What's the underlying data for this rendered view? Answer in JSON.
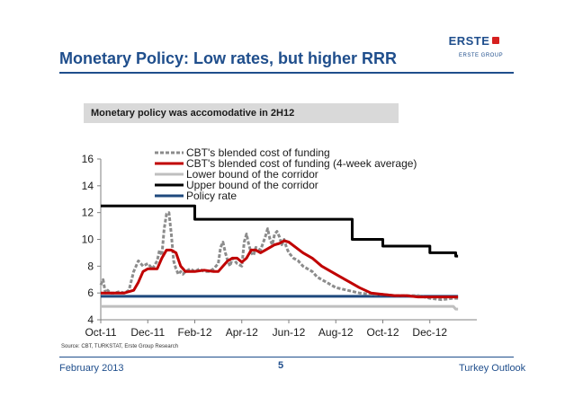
{
  "header": {
    "title": "Monetary Policy: Low rates, but higher RRR",
    "logo_text": "ERSTE",
    "logo_subtext": "ERSTE GROUP"
  },
  "banner": {
    "text": "Monetary policy was accomodative in 2H12"
  },
  "colors": {
    "brand_blue": "#1f4e8c",
    "logo_red": "#d6201f",
    "blended": "#8c8c8c",
    "blended_avg": "#c00000",
    "lower_bound": "#bfbfbf",
    "upper_bound": "#000000",
    "policy": "#1f497d"
  },
  "chart_data": {
    "type": "line",
    "title": "",
    "xlabel": "",
    "ylabel": "",
    "ylim": [
      4,
      16
    ],
    "yticks": [
      4,
      6,
      8,
      10,
      12,
      14,
      16
    ],
    "xlim": [
      0,
      16
    ],
    "xtick_labels": [
      "Oct-11",
      "Dec-11",
      "Feb-12",
      "Apr-12",
      "Jun-12",
      "Aug-12",
      "Oct-12",
      "Dec-12"
    ],
    "xtick_positions": [
      0,
      2,
      4,
      6,
      8,
      10,
      12,
      14
    ],
    "legend_position": "top-center",
    "series": [
      {
        "name": "CBT's blended cost of funding",
        "style": "gray-marker",
        "x": [
          0,
          0.1,
          0.2,
          0.3,
          0.4,
          0.5,
          0.6,
          0.8,
          1.0,
          1.2,
          1.4,
          1.6,
          1.8,
          2.0,
          2.2,
          2.4,
          2.5,
          2.6,
          2.7,
          2.8,
          2.9,
          3.0,
          3.1,
          3.2,
          3.3,
          3.4,
          3.5,
          3.6,
          3.8,
          4.0,
          4.2,
          4.4,
          4.6,
          4.8,
          5.0,
          5.1,
          5.2,
          5.3,
          5.4,
          5.5,
          5.6,
          5.8,
          6.0,
          6.1,
          6.2,
          6.3,
          6.4,
          6.5,
          6.6,
          6.8,
          7.0,
          7.1,
          7.2,
          7.3,
          7.4,
          7.5,
          7.6,
          7.7,
          7.8,
          7.9,
          8.0,
          8.2,
          8.4,
          8.6,
          8.8,
          9.0,
          9.2,
          9.4,
          9.6,
          9.8,
          10.0,
          10.5,
          11.0,
          11.5,
          12.0,
          12.5,
          13.0,
          13.5,
          14.0,
          14.5,
          15.0,
          15.2
        ],
        "values": [
          6.6,
          7.0,
          6.0,
          6.2,
          6.0,
          6.0,
          6.0,
          6.1,
          6.0,
          6.2,
          7.6,
          8.4,
          8.0,
          8.2,
          7.8,
          8.4,
          9.2,
          8.8,
          10.8,
          11.9,
          12.0,
          10.4,
          8.4,
          7.8,
          7.4,
          7.6,
          7.4,
          7.6,
          7.8,
          7.6,
          7.8,
          7.6,
          7.6,
          7.8,
          8.2,
          9.4,
          9.8,
          9.0,
          8.4,
          8.0,
          8.6,
          8.2,
          8.0,
          9.8,
          10.4,
          9.6,
          9.0,
          8.8,
          9.4,
          9.2,
          10.2,
          10.8,
          10.0,
          9.6,
          10.4,
          10.6,
          10.2,
          9.6,
          10.0,
          9.4,
          9.0,
          8.6,
          8.4,
          8.0,
          7.8,
          7.6,
          7.2,
          7.0,
          6.8,
          6.6,
          6.4,
          6.2,
          6.0,
          5.9,
          5.9,
          5.8,
          5.8,
          5.8,
          5.6,
          5.5,
          5.6,
          5.6
        ]
      },
      {
        "name": "CBT's blended cost of funding (4-week average)",
        "style": "red",
        "x": [
          0,
          0.3,
          0.6,
          1.0,
          1.4,
          1.6,
          1.8,
          2.0,
          2.2,
          2.4,
          2.6,
          2.8,
          3.0,
          3.2,
          3.4,
          3.6,
          3.8,
          4.0,
          4.4,
          4.8,
          5.0,
          5.2,
          5.4,
          5.6,
          5.8,
          6.0,
          6.2,
          6.4,
          6.6,
          6.8,
          7.0,
          7.2,
          7.4,
          7.6,
          7.8,
          8.0,
          8.3,
          8.6,
          9.0,
          9.4,
          9.8,
          10.2,
          10.6,
          11.0,
          11.5,
          12.0,
          12.5,
          13.0,
          13.5,
          14.0,
          14.5,
          15.0,
          15.2
        ],
        "values": [
          6.0,
          6.0,
          6.0,
          6.0,
          6.2,
          6.8,
          7.6,
          7.8,
          7.8,
          7.8,
          8.6,
          9.2,
          9.2,
          9.0,
          8.0,
          7.6,
          7.6,
          7.6,
          7.7,
          7.6,
          7.6,
          8.0,
          8.4,
          8.6,
          8.6,
          8.3,
          8.6,
          9.2,
          9.2,
          9.0,
          9.2,
          9.4,
          9.6,
          9.7,
          9.9,
          9.8,
          9.4,
          9.0,
          8.6,
          8.0,
          7.6,
          7.2,
          6.8,
          6.4,
          6.0,
          5.9,
          5.8,
          5.8,
          5.7,
          5.7,
          5.7,
          5.7,
          5.7
        ]
      },
      {
        "name": "Lower bound of the corridor",
        "style": "lightgray",
        "x": [
          0,
          15.0,
          15.1,
          15.2
        ],
        "values": [
          5.0,
          5.0,
          4.8,
          4.8
        ]
      },
      {
        "name": "Upper bound of the corridor",
        "style": "black",
        "x": [
          0,
          4.0,
          4.0,
          10.7,
          10.7,
          12.0,
          12.0,
          14.0,
          14.0,
          15.1,
          15.1,
          15.2
        ],
        "values": [
          12.5,
          12.5,
          11.5,
          11.5,
          10.0,
          10.0,
          9.5,
          9.5,
          9.0,
          9.0,
          8.75,
          8.75
        ]
      },
      {
        "name": "Policy rate",
        "style": "blue",
        "x": [
          0,
          15.2
        ],
        "values": [
          5.75,
          5.75
        ]
      }
    ]
  },
  "source": {
    "text": "Source: CBT, TURKSTAT, Erste Group Research"
  },
  "footer": {
    "date": "February 2013",
    "page": "5",
    "doc": "Turkey Outlook"
  }
}
